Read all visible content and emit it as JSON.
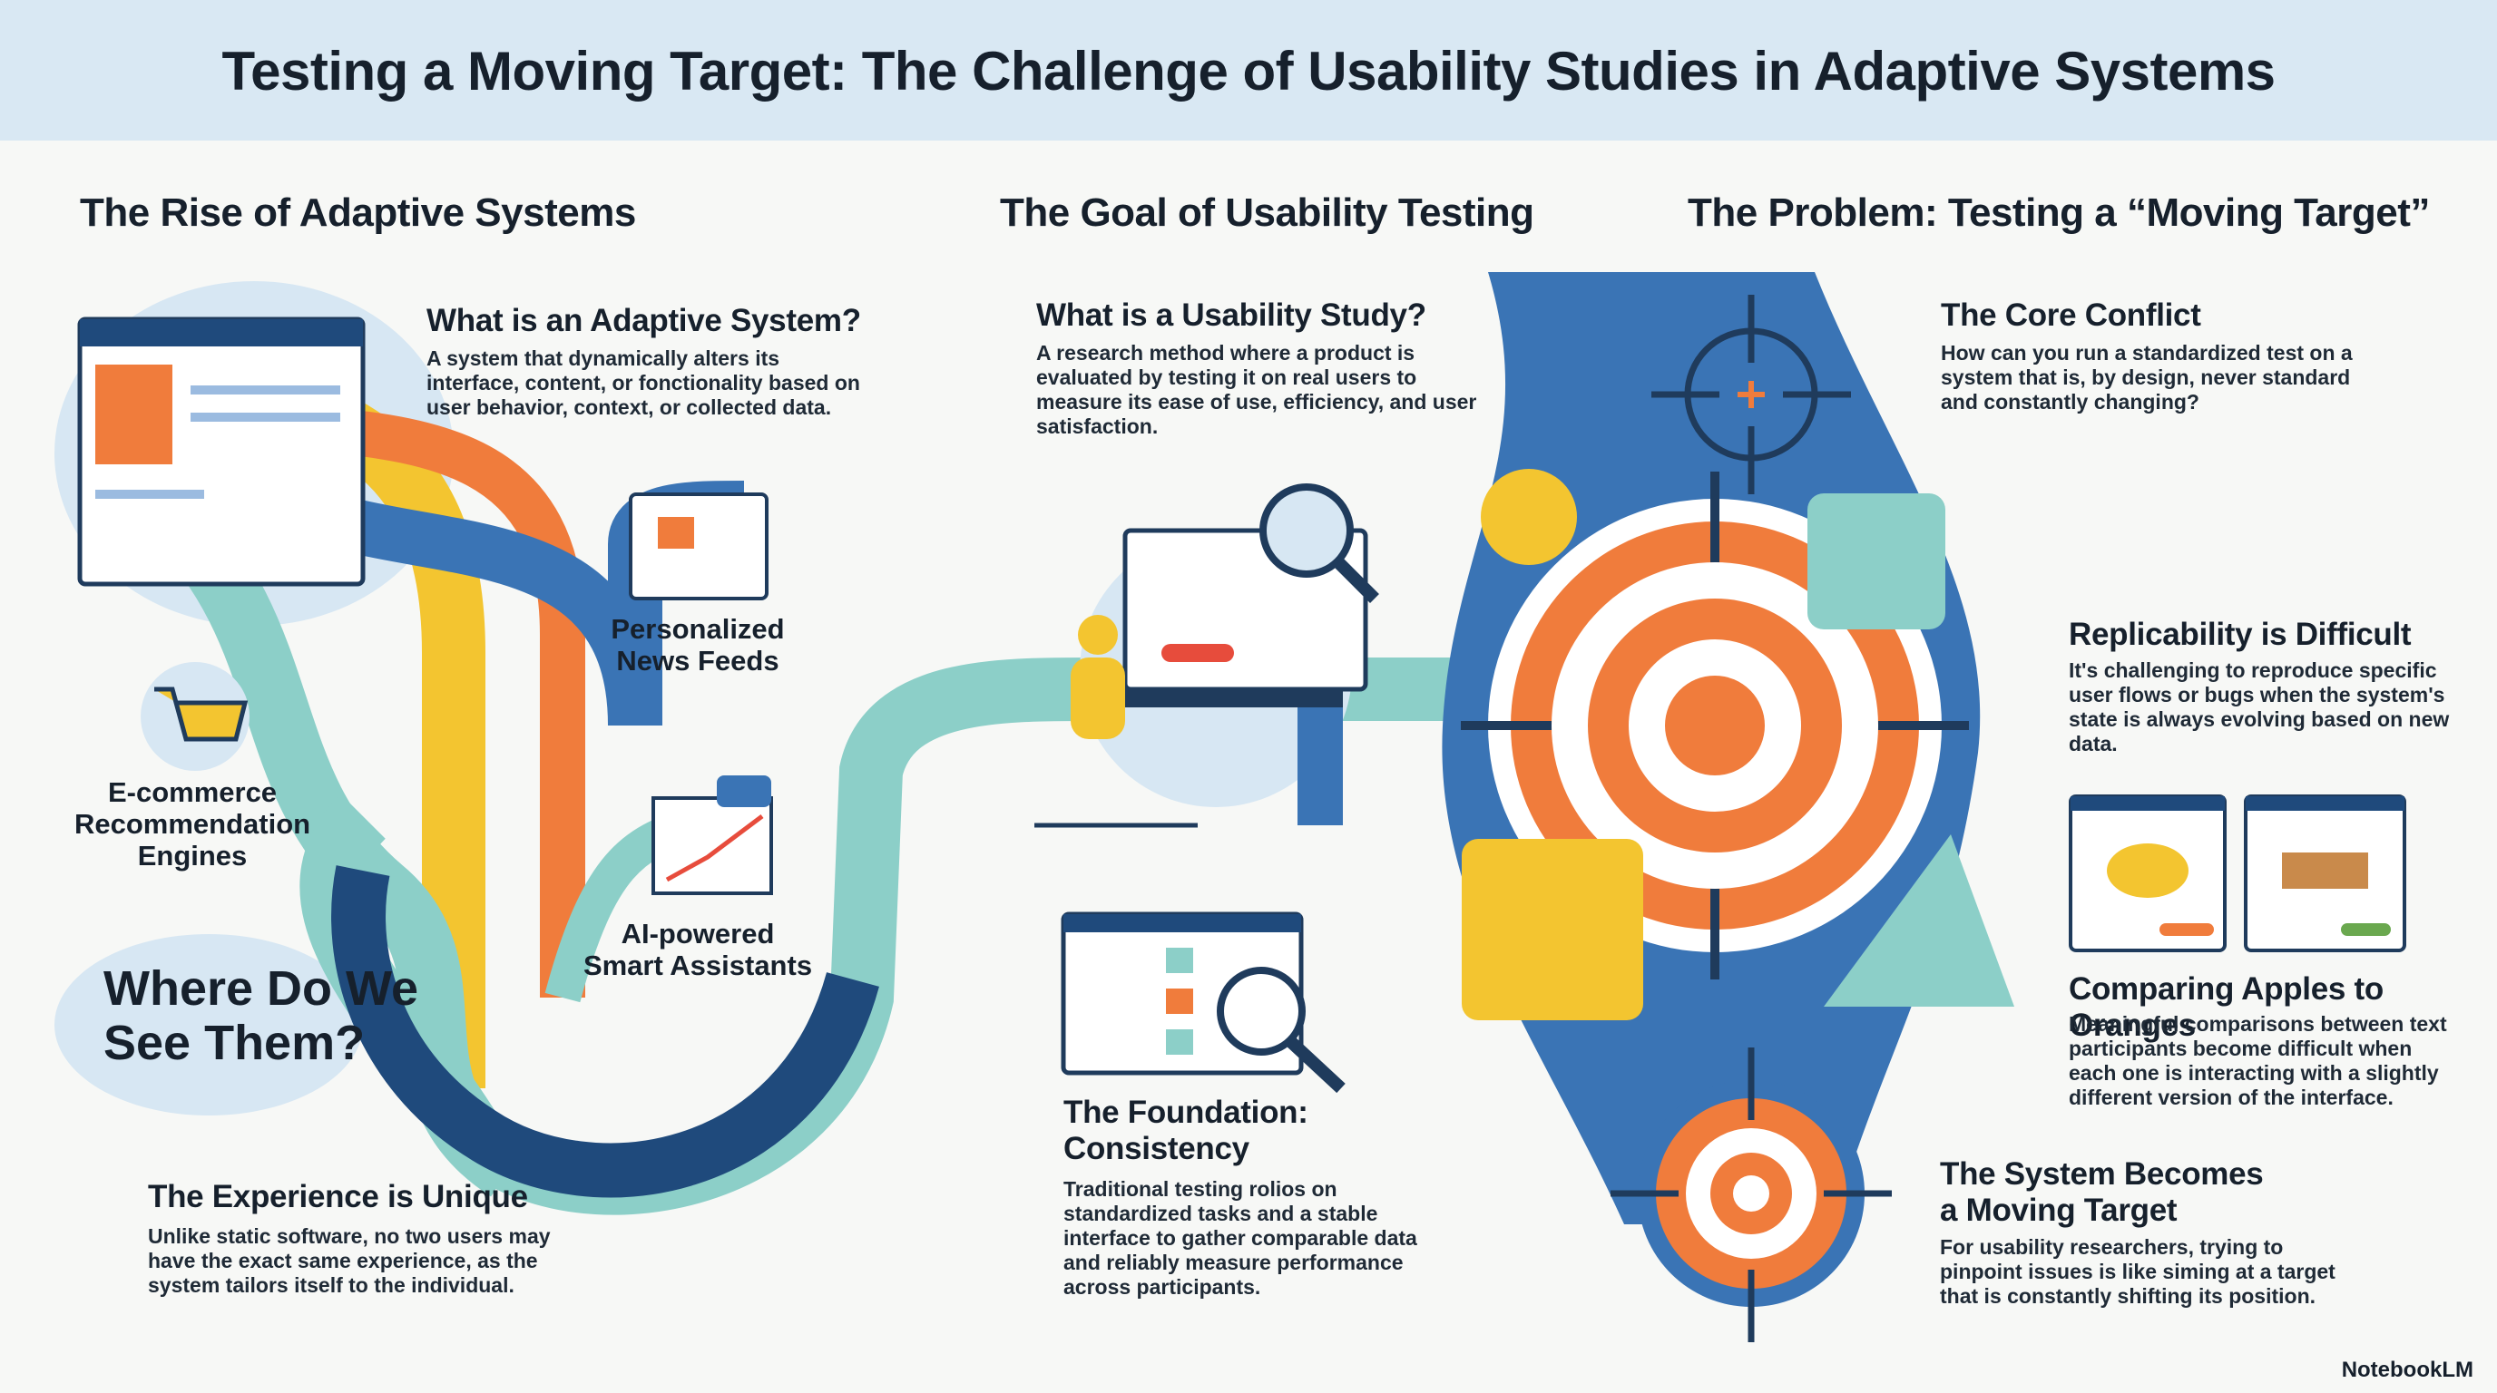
{
  "header": {
    "title": "Testing a Moving Target: The Challenge of Usability Studies in Adaptive Systems"
  },
  "sections": [
    {
      "heading": "The Rise of Adaptive Systems",
      "items": [
        {
          "title": "What is an Adaptive System?",
          "text": "A system that dynamically alters its interface, content, or fonctionality based on user behavior, context, or collected data."
        },
        {
          "title": "The Experience is Unique",
          "text": "Unlike static software, no two users may have the exact same experience, as the system tailors itself to the individual."
        }
      ],
      "examples_heading": "Where Do We See Them?",
      "examples": [
        "Personalized News Feeds",
        "E-commerce Recommendation Engines",
        "AI-powered Smart Assistants"
      ]
    },
    {
      "heading": "The Goal of Usability Testing",
      "items": [
        {
          "title": "What is a Usability Study?",
          "text": "A research method where a product is evaluated by testing it on real users to measure its ease of use, efficiency, and user satisfaction."
        },
        {
          "title": "The Foundation: Consistency",
          "text": "Traditional testing rolios on standardized tasks and a stable interface to gather comparable data and reliably measure performance across participants."
        }
      ]
    },
    {
      "heading": "The Problem: Testing a “Moving Target”",
      "items": [
        {
          "title": "The Core Conflict",
          "text": "How can you run a standardized test on a system that is, by design, never standard and constantly changing?"
        },
        {
          "title": "Replicability is Difficult",
          "text": "It's challenging to reproduce specific user flows or bugs when the system's state is always evolving based on new data."
        },
        {
          "title": "Comparing Apples to Oranges",
          "text": "Meaningful comparisons between text participants become difficult when each one is interacting with a slightly different version of the interface."
        },
        {
          "title": "The System Becomes a Moving Target",
          "text": "For usability researchers, trying to pinpoint issues is like siming at a target that is constantly shifting its position."
        }
      ]
    }
  ],
  "footer": {
    "brand": "NotebookLM"
  }
}
